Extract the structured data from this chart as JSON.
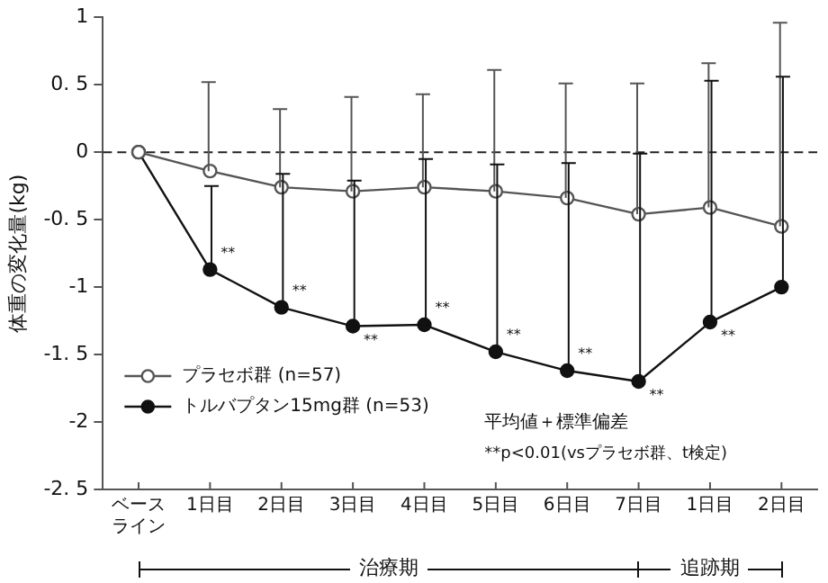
{
  "chart_data": {
    "type": "line",
    "ylabel": "体重の変化量(kg)",
    "categories": [
      "ベースライン",
      "1日目",
      "2日目",
      "3日目",
      "4日目",
      "5日目",
      "6日目",
      "7日目",
      "1日目",
      "2日目"
    ],
    "series": [
      {
        "name": "プラセボ群 (n=57)",
        "color": "#555555",
        "values": [
          0,
          -0.14,
          -0.26,
          -0.29,
          -0.26,
          -0.29,
          -0.34,
          -0.46,
          -0.41,
          -0.55
        ],
        "errors": [
          null,
          [
            -0.14,
            0.52
          ],
          [
            -0.26,
            0.32
          ],
          [
            -0.29,
            0.41
          ],
          [
            -0.26,
            0.43
          ],
          [
            -0.29,
            0.61
          ],
          [
            -0.34,
            0.51
          ],
          [
            -0.46,
            0.51
          ],
          [
            -0.41,
            0.66
          ],
          [
            -0.55,
            0.96
          ]
        ]
      },
      {
        "name": "トルバプタン15mg群 (n=53)",
        "color": "#111111",
        "values": [
          0,
          -0.87,
          -1.15,
          -1.29,
          -1.28,
          -1.48,
          -1.62,
          -1.7,
          -1.26,
          -1.0
        ],
        "errors": [
          null,
          [
            -0.87,
            -0.25
          ],
          [
            -1.15,
            -0.16
          ],
          [
            -1.29,
            -0.21
          ],
          [
            -1.28,
            -0.05
          ],
          [
            -1.48,
            -0.09
          ],
          [
            -1.62,
            -0.08
          ],
          [
            -1.7,
            -0.01
          ],
          [
            -1.26,
            0.53
          ],
          [
            -1.0,
            0.56
          ]
        ],
        "value_labels": [
          null,
          "**",
          "**",
          "**",
          "**",
          "**",
          "**",
          "**",
          "**",
          null
        ]
      }
    ],
    "ylim": [
      -2.5,
      1
    ],
    "yticks": [
      {
        "value": 1,
        "label": "1"
      },
      {
        "value": 0.5,
        "label": "0. 5"
      },
      {
        "value": 0,
        "label": "0"
      },
      {
        "value": -0.5,
        "label": "-0. 5"
      },
      {
        "value": -1,
        "label": "-1"
      },
      {
        "value": -1.5,
        "label": "-1. 5"
      },
      {
        "value": -2,
        "label": "-2"
      },
      {
        "value": -2.5,
        "label": "-2. 5"
      }
    ],
    "ref_lines": [
      {
        "axis": "y",
        "value": 0,
        "line_style": "dashed",
        "color": "#222222"
      }
    ],
    "grid": false,
    "legend": "bottom left",
    "marker": "circle",
    "line_style": "solid",
    "annotations": [
      "平均値＋標準偏差",
      "**p<0.01(vsプラセボ群、t検定)",
      "治療期",
      "追跡期"
    ]
  }
}
